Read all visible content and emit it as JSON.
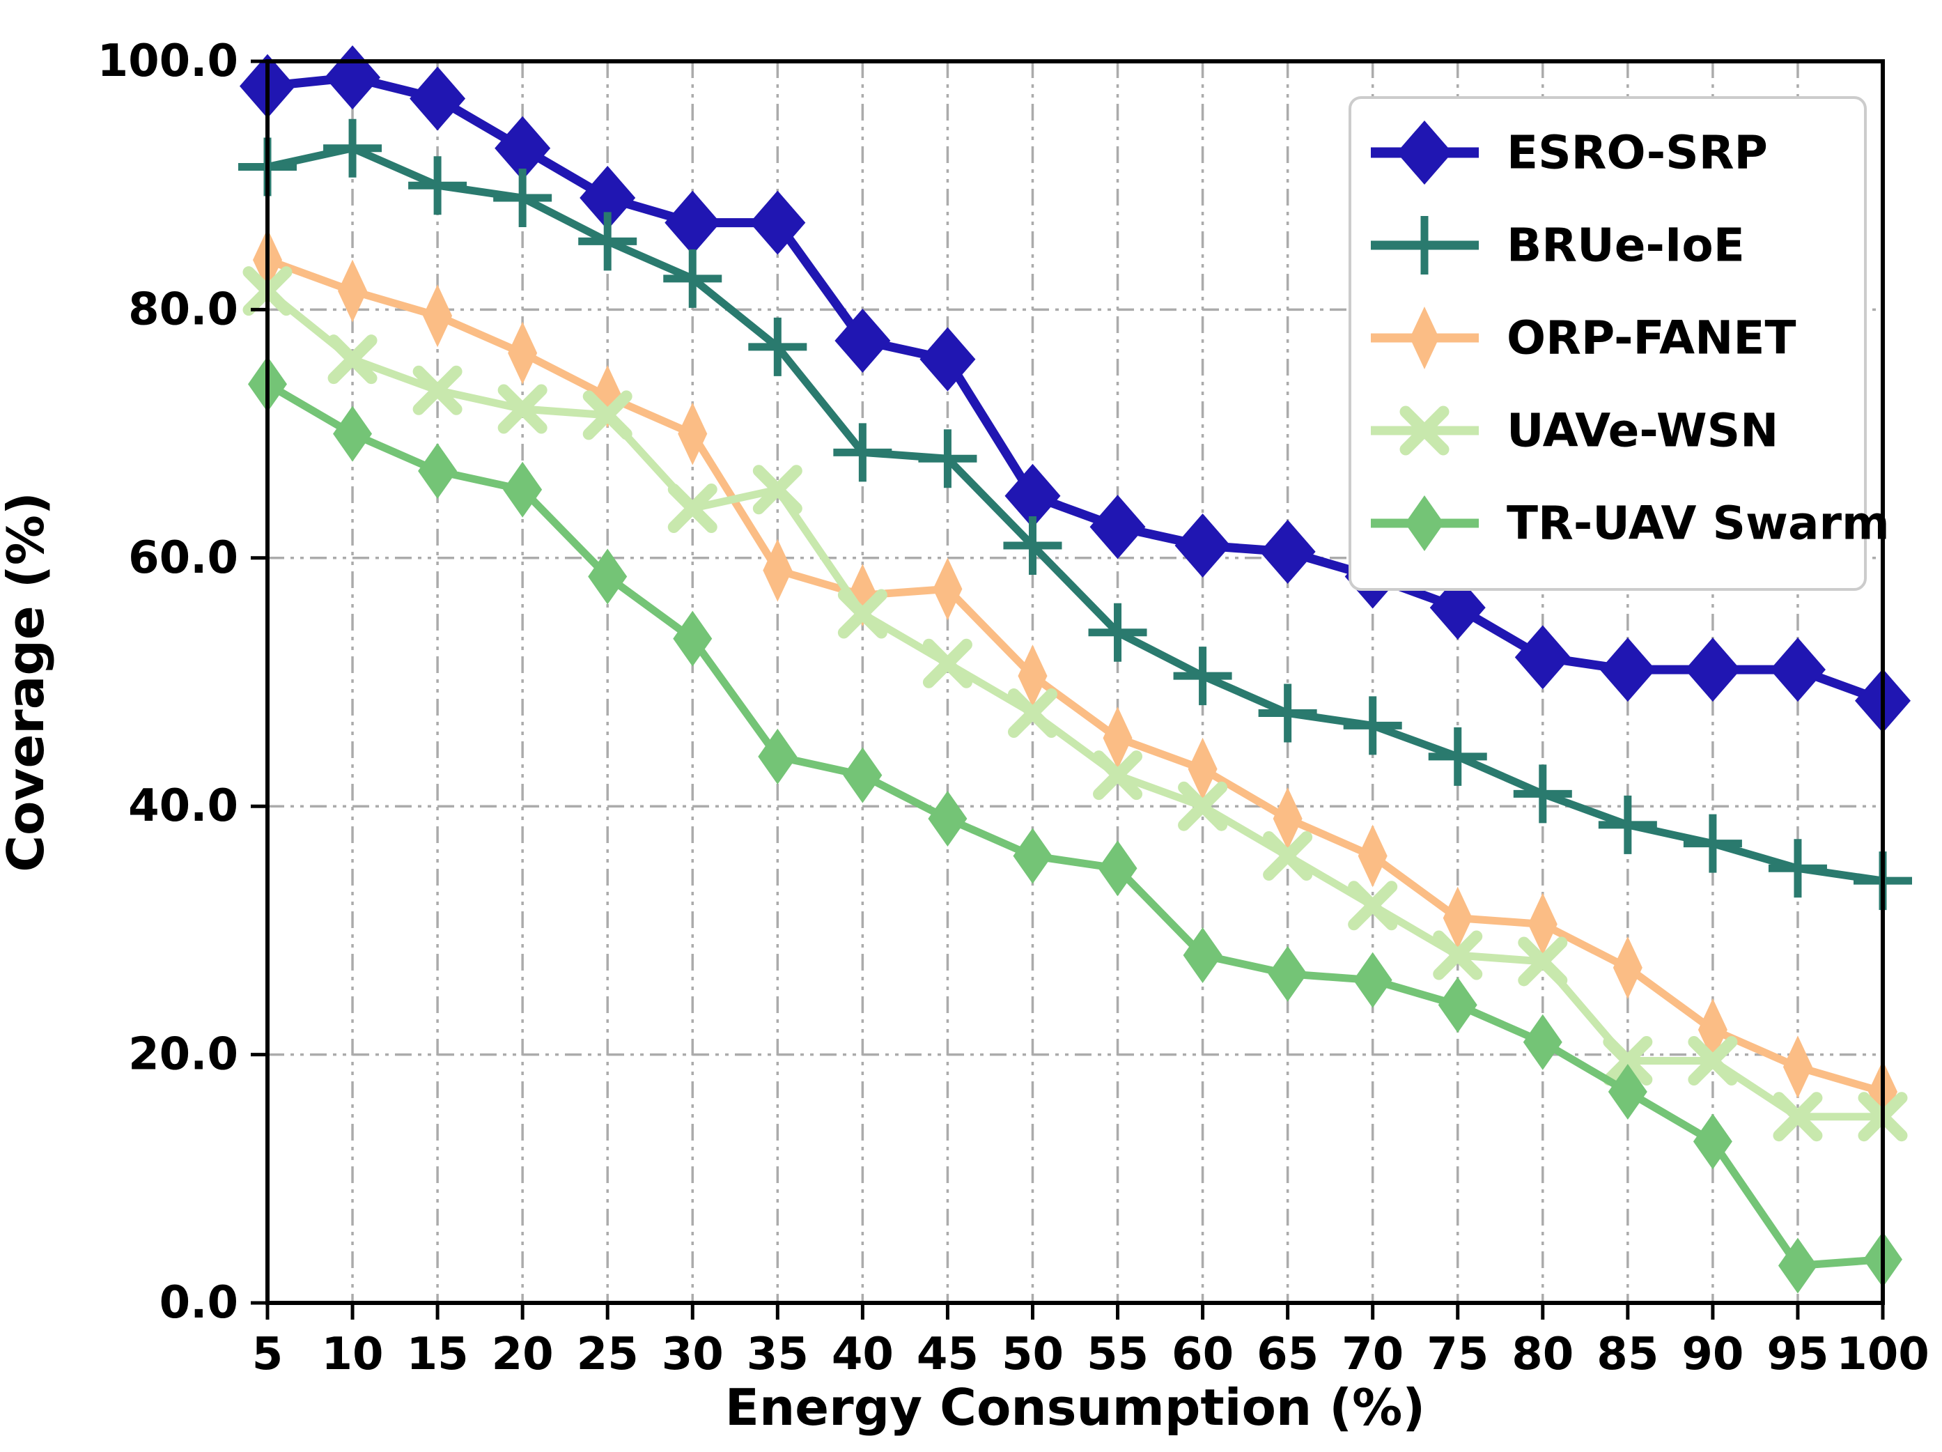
{
  "figure": {
    "background": "#ffffff",
    "axis_color": "#000000",
    "grid_color": "#ababab"
  },
  "chart_data": {
    "type": "line",
    "title": "",
    "xlabel": "Energy Consumption (%)",
    "ylabel": "Coverage (%)",
    "xlim": [
      5,
      100
    ],
    "ylim": [
      0,
      100
    ],
    "x": [
      5,
      10,
      15,
      20,
      25,
      30,
      35,
      40,
      45,
      50,
      55,
      60,
      65,
      70,
      75,
      80,
      85,
      90,
      95,
      100
    ],
    "xtick_labels": [
      "5",
      "10",
      "15",
      "20",
      "25",
      "30",
      "35",
      "40",
      "45",
      "50",
      "55",
      "60",
      "65",
      "70",
      "75",
      "80",
      "85",
      "90",
      "95",
      "100"
    ],
    "yticks": [
      0,
      20,
      40,
      60,
      80,
      100
    ],
    "ytick_labels": [
      "0.0",
      "20.0",
      "40.0",
      "60.0",
      "80.0",
      "100.0"
    ],
    "grid": "dash-dot, both axes",
    "legend_position": "upper right",
    "series": [
      {
        "name": "ESRO-SRP",
        "color": "#2016b2",
        "marker": "diamond-large",
        "line_width": 13,
        "values": [
          98,
          98.7,
          97,
          93,
          89,
          87,
          87,
          77.5,
          76,
          65,
          62.5,
          61,
          60.5,
          58.5,
          56,
          52,
          51,
          51,
          51,
          48.5
        ]
      },
      {
        "name": "BRUe-IoE",
        "color": "#2a7a6e",
        "marker": "plus",
        "line_width": 11,
        "values": [
          91.5,
          93,
          90,
          89,
          85.5,
          82.5,
          77,
          68.5,
          68,
          61,
          54,
          50.5,
          47.5,
          46.5,
          44,
          41,
          38.5,
          37,
          35,
          34
        ]
      },
      {
        "name": "ORP-FANET",
        "color": "#fbbd85",
        "marker": "thin-diamond",
        "line_width": 11,
        "values": [
          84,
          81.5,
          79.5,
          76.5,
          73,
          70,
          59,
          57,
          57.5,
          50.5,
          45.5,
          43,
          39,
          36,
          31,
          30.5,
          27,
          22,
          19,
          17
        ]
      },
      {
        "name": "UAVe-WSN",
        "color": "#c8e8ad",
        "marker": "x",
        "line_width": 11,
        "values": [
          81.5,
          76,
          73.5,
          72,
          71.5,
          64,
          65.5,
          55.5,
          51.5,
          47.5,
          42.5,
          40,
          36,
          32,
          28,
          27.5,
          19.5,
          19.5,
          15,
          15
        ]
      },
      {
        "name": "TR-UAV Swarm",
        "color": "#74c476",
        "marker": "diamond",
        "line_width": 11,
        "values": [
          74,
          70,
          67,
          65.5,
          58.5,
          53.5,
          44,
          42.5,
          39,
          36,
          35,
          28,
          26.5,
          26,
          24,
          21,
          17,
          13,
          3,
          3.5
        ]
      }
    ]
  }
}
